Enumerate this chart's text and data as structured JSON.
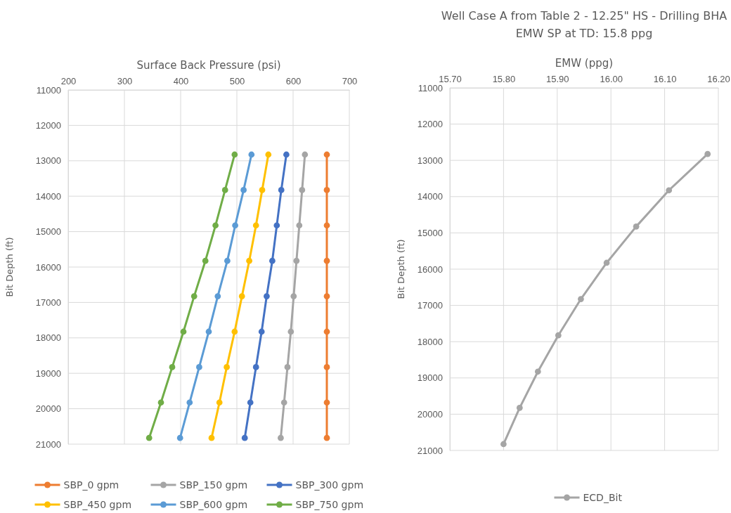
{
  "chart_data": [
    {
      "type": "line",
      "xlabel": "Surface Back Pressure (psi)",
      "ylabel": "Bit Depth (ft)",
      "xlim": [
        200,
        700
      ],
      "xticks": [
        200,
        300,
        400,
        500,
        600,
        700
      ],
      "ylim": [
        21000,
        11000
      ],
      "yticks": [
        11000,
        12000,
        13000,
        14000,
        15000,
        16000,
        17000,
        18000,
        19000,
        20000,
        21000
      ],
      "grid": true,
      "legend": "bottom",
      "marker": "circle",
      "line_style": "solid",
      "series": [
        {
          "name": "SBP_0 gpm",
          "color": "#ed7d31",
          "x": [
            660,
            660,
            660,
            660,
            660,
            660,
            660,
            660,
            660
          ],
          "values": [
            12825,
            13825,
            14825,
            15825,
            16825,
            17825,
            18825,
            19825,
            20825
          ]
        },
        {
          "name": "SBP_150 gpm",
          "color": "#a5a5a5",
          "x": [
            621,
            616,
            611,
            606,
            601,
            596,
            590,
            584,
            578
          ],
          "values": [
            12825,
            13825,
            14825,
            15825,
            16825,
            17825,
            18825,
            19825,
            20825
          ]
        },
        {
          "name": "SBP_300 gpm",
          "color": "#4472c4",
          "x": [
            588,
            579,
            571,
            563,
            553,
            544,
            534,
            524,
            514
          ],
          "values": [
            12825,
            13825,
            14825,
            15825,
            16825,
            17825,
            18825,
            19825,
            20825
          ]
        },
        {
          "name": "SBP_450 gpm",
          "color": "#ffc000",
          "x": [
            556,
            545,
            534,
            522,
            509,
            496,
            482,
            469,
            455
          ],
          "values": [
            12825,
            13825,
            14825,
            15825,
            16825,
            17825,
            18825,
            19825,
            20825
          ]
        },
        {
          "name": "SBP_600 gpm",
          "color": "#5b9bd5",
          "x": [
            526,
            512,
            497,
            483,
            466,
            450,
            433,
            416,
            399
          ],
          "values": [
            12825,
            13825,
            14825,
            15825,
            16825,
            17825,
            18825,
            19825,
            20825
          ]
        },
        {
          "name": "SBP_750 gpm",
          "color": "#70ad47",
          "x": [
            496,
            479,
            462,
            444,
            424,
            405,
            385,
            365,
            344
          ],
          "values": [
            12825,
            13825,
            14825,
            15825,
            16825,
            17825,
            18825,
            19825,
            20825
          ]
        }
      ]
    },
    {
      "type": "line",
      "title": "Well Case A from Table 2 - 12.25\" HS - Drilling BHA",
      "subtitle": "EMW SP at TD: 15.8 ppg",
      "xlabel": "EMW (ppg)",
      "ylabel": "Bit Depth (ft)",
      "xlim": [
        15.7,
        16.2
      ],
      "xticks": [
        {
          "value": 15.7,
          "label": "15.70"
        },
        {
          "value": 15.8,
          "label": "15.80"
        },
        {
          "value": 15.9,
          "label": "15.90"
        },
        {
          "value": 16.0,
          "label": "16.00"
        },
        {
          "value": 16.1,
          "label": "16.10"
        },
        {
          "value": 16.2,
          "label": "16.20"
        }
      ],
      "ylim": [
        21000,
        11000
      ],
      "yticks": [
        11000,
        12000,
        13000,
        14000,
        15000,
        16000,
        17000,
        18000,
        19000,
        20000,
        21000
      ],
      "grid": true,
      "legend": "bottom",
      "marker": "circle",
      "line_style": "solid",
      "series": [
        {
          "name": "ECD_Bit",
          "color": "#a5a5a5",
          "x": [
            16.18,
            16.108,
            16.047,
            15.992,
            15.944,
            15.902,
            15.864,
            15.83,
            15.8
          ],
          "values": [
            12825,
            13825,
            14825,
            15825,
            16825,
            17825,
            18825,
            19825,
            20825
          ]
        }
      ]
    }
  ]
}
